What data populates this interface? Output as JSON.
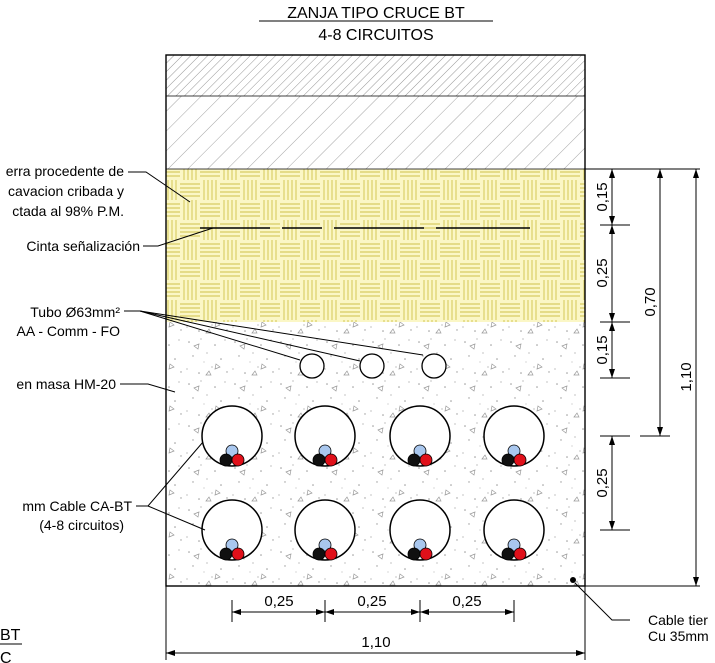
{
  "title": {
    "line1": "ZANJA TIPO CRUCE BT",
    "line2": "4-8 CIRCUITOS"
  },
  "labels": {
    "fill_1": "erra procedente de",
    "fill_2": "cavacion cribada y",
    "fill_3": "ctada al 98% P.M.",
    "tape": "Cinta señalización",
    "tube_1": "Tubo Ø63mm²",
    "tube_2": "AA - Comm - FO",
    "concrete": "en masa HM-20",
    "cable_1": "mm Cable CA-BT",
    "cable_2": "(4-8 circuitos)",
    "earth_1": "Cable tier",
    "earth_2": "Cu 35mm",
    "corner_1": "BT",
    "corner_2": "C"
  },
  "dimensions": {
    "right_1": "0,15",
    "right_2": "0,25",
    "right_3": "0,15",
    "right_4": "0,25",
    "total_backfill": "0,70",
    "total_depth": "1,10",
    "bottom_1": "0,25",
    "bottom_2": "0,25",
    "bottom_3": "0,25",
    "width": "1,10"
  },
  "colors": {
    "backfill": "#fbf7c6",
    "backfill_hatch": "#d4c84a",
    "cable_blue": "#a9c7ee",
    "cable_black": "#101010",
    "cable_red": "#e0101a"
  }
}
